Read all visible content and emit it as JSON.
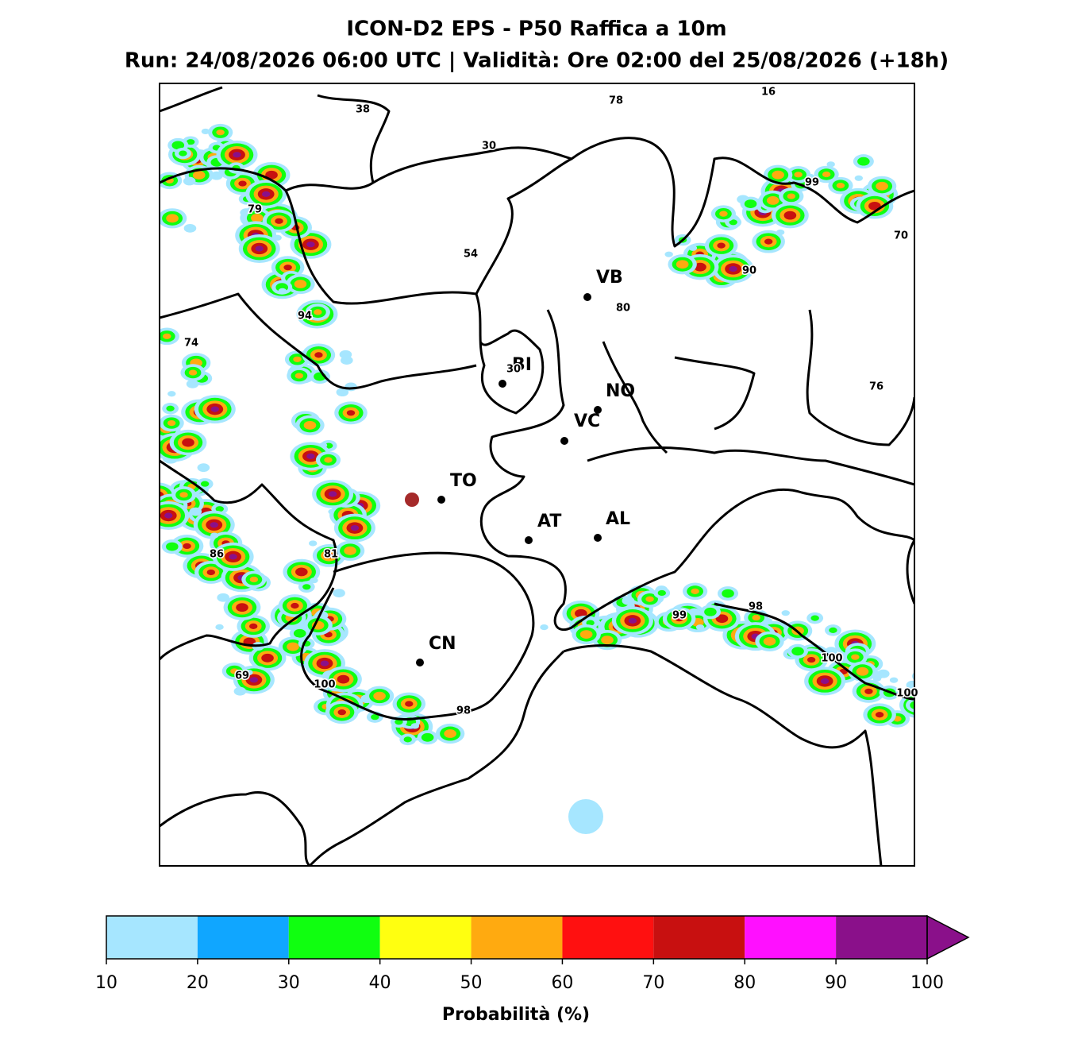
{
  "header": {
    "title": "ICON-D2 EPS - P50 Raffica a 10m",
    "subtitle": "Run: 24/08/2026 06:00 UTC | Validità: Ore 02:00 del 25/08/2026 (+18h)"
  },
  "cities": [
    "VB",
    "BI",
    "NO",
    "VC",
    "TO",
    "AT",
    "AL",
    "CN"
  ],
  "point_labels": [
    38,
    78,
    16,
    30,
    99,
    79,
    70,
    54,
    90,
    80,
    94,
    74,
    30,
    76,
    86,
    81,
    99,
    98,
    100,
    69,
    100,
    98,
    100
  ],
  "colorbar": {
    "ticks": [
      10,
      20,
      30,
      40,
      50,
      60,
      70,
      80,
      90,
      100
    ],
    "colors": [
      "#a6e6ff",
      "#10a6ff",
      "#10ff10",
      "#ffff10",
      "#ffaa10",
      "#ff1010",
      "#c81010",
      "#ff10ff",
      "#8a108a"
    ],
    "extend_color": "#8a108a",
    "label": "Probabilità (%)"
  }
}
